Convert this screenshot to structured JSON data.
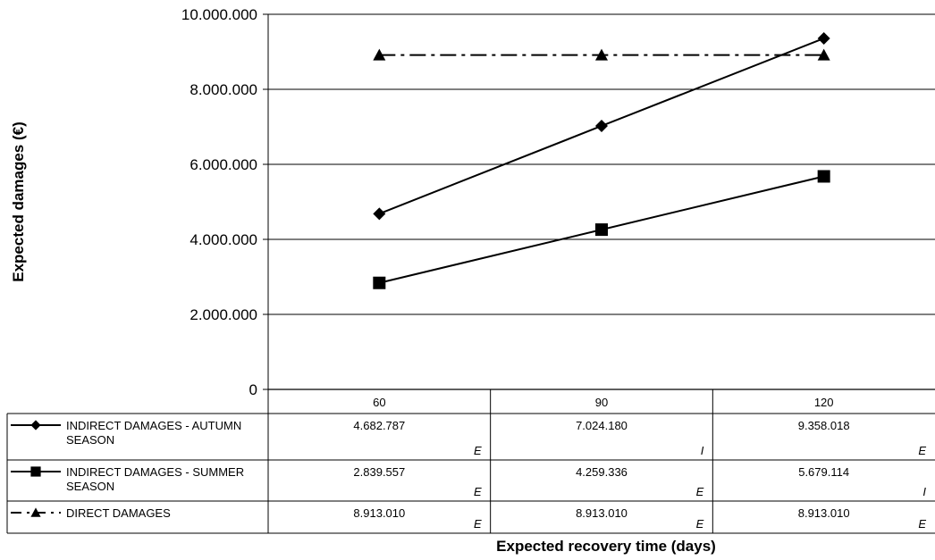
{
  "chart_data": {
    "type": "line",
    "xlabel": "Expected recovery time (days)",
    "ylabel": "Expected damages (€)",
    "categories": [
      "60",
      "90",
      "120"
    ],
    "ylim": [
      0,
      10000000
    ],
    "yticks": [
      0,
      2000000,
      4000000,
      6000000,
      8000000,
      10000000
    ],
    "ytick_labels": [
      "0",
      "2.000.000",
      "4.000.000",
      "6.000.000",
      "8.000.000",
      "10.000.000"
    ],
    "grid": true,
    "legend": "data-table",
    "series": [
      {
        "name_lines": [
          "INDIRECT DAMAGES - AUTUMN",
          "SEASON"
        ],
        "marker": "diamond",
        "line_style": "solid",
        "values": [
          4682787,
          7024180,
          9358018
        ],
        "value_labels": [
          "4.682.787",
          "7.024.180",
          "9.358.018"
        ],
        "flags": [
          "E",
          "I",
          "E"
        ]
      },
      {
        "name_lines": [
          "INDIRECT DAMAGES - SUMMER",
          "SEASON"
        ],
        "marker": "square",
        "line_style": "solid",
        "values": [
          2839557,
          4259336,
          5679114
        ],
        "value_labels": [
          "2.839.557",
          "4.259.336",
          "5.679.114"
        ],
        "flags": [
          "E",
          "E",
          "I"
        ]
      },
      {
        "name_lines": [
          "DIRECT DAMAGES"
        ],
        "marker": "triangle",
        "line_style": "dash-dot",
        "values": [
          8913010,
          8913010,
          8913010
        ],
        "value_labels": [
          "8.913.010",
          "8.913.010",
          "8.913.010"
        ],
        "flags": [
          "E",
          "E",
          "E"
        ]
      }
    ]
  }
}
